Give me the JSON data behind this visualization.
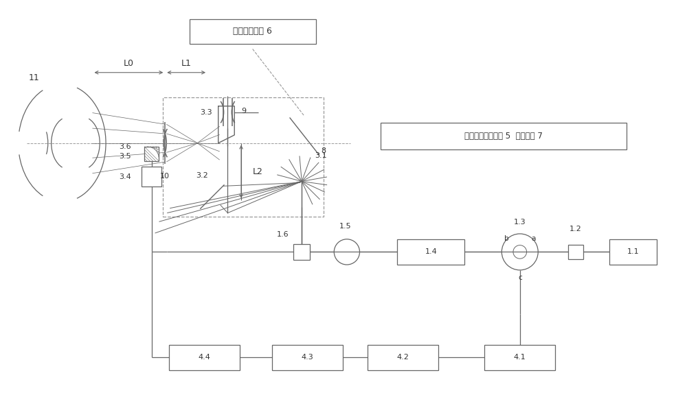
{
  "line_color": "#666666",
  "dashed_color": "#999999",
  "text_color": "#333333",
  "fig_width": 10.0,
  "fig_height": 5.79,
  "labels": {
    "eye": "11",
    "L0": "L0",
    "L1": "L1",
    "L2": "L2",
    "label8": "8",
    "label9": "9",
    "label10": "10",
    "label31": "3.1",
    "label32": "3.2",
    "label33": "3.3",
    "label34": "3.4",
    "label35": "3.5",
    "label36": "3.6",
    "label11": "1.1",
    "label12": "1.2",
    "label13": "1.3",
    "label14": "1.4",
    "label15": "1.5",
    "label16": "1.6",
    "label41": "4.1",
    "label42": "4.2",
    "label43": "4.3",
    "label44": "4.4",
    "fundus_label": "眼底照明组件 6",
    "fixation_label": "被测眼固视光组件 5  观测单元 7",
    "port_b": "b",
    "port_a": "a",
    "port_c": "c"
  }
}
